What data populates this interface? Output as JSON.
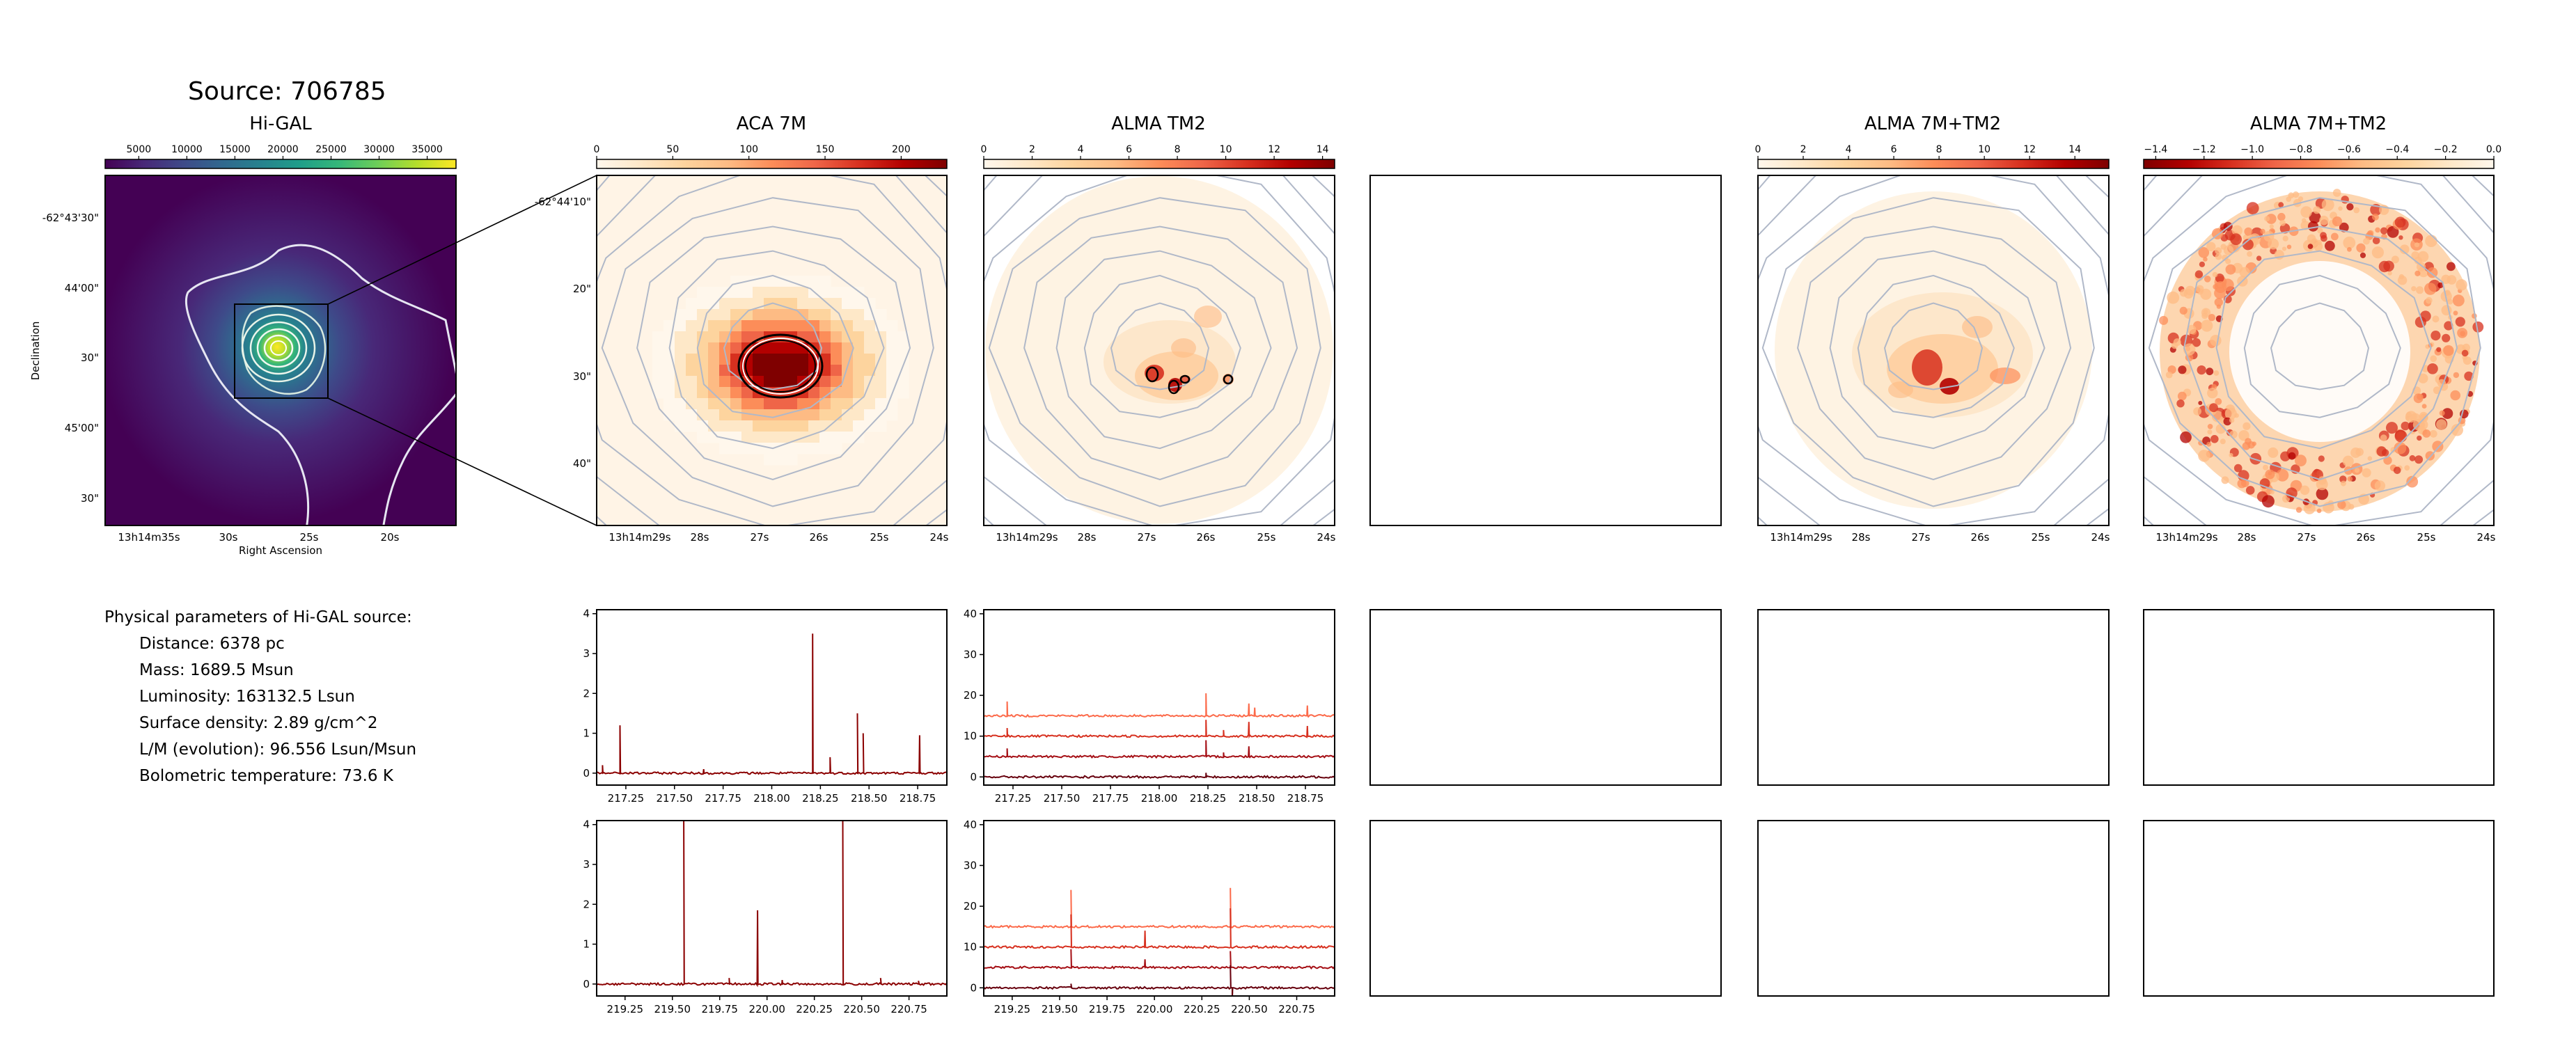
{
  "source_title": "Source: 706785",
  "panels": {
    "higal": {
      "title": "Hi-GAL"
    },
    "aca7m": {
      "title": "ACA 7M"
    },
    "tm2": {
      "title": "ALMA TM2"
    },
    "combo1": {
      "title": "ALMA 7M+TM2"
    },
    "combo2": {
      "title": "ALMA 7M+TM2"
    }
  },
  "colormaps": {
    "viridis": [
      "#440154",
      "#482878",
      "#3e4a89",
      "#31688e",
      "#26828e",
      "#1f9e89",
      "#35b779",
      "#6ece58",
      "#b5de2b",
      "#fde725"
    ],
    "orrd": [
      "#fff7ec",
      "#fee8c8",
      "#fdd49e",
      "#fdbb84",
      "#fc8d59",
      "#ef6548",
      "#d7301f",
      "#b30000",
      "#7f0000"
    ]
  },
  "colorbars": [
    {
      "panel": "higal",
      "cmap": "viridis",
      "reversed": false,
      "range": [
        1500,
        38000
      ],
      "ticks": [
        "5000",
        "10000",
        "15000",
        "20000",
        "25000",
        "30000",
        "35000"
      ],
      "tick_values": [
        5000,
        10000,
        15000,
        20000,
        25000,
        30000,
        35000
      ]
    },
    {
      "panel": "aca7m",
      "cmap": "orrd",
      "reversed": false,
      "range": [
        0,
        230
      ],
      "ticks": [
        "0",
        "50",
        "100",
        "150",
        "200"
      ],
      "tick_values": [
        0,
        50,
        100,
        150,
        200
      ]
    },
    {
      "panel": "tm2",
      "cmap": "orrd",
      "reversed": false,
      "range": [
        0,
        14.5
      ],
      "ticks": [
        "0",
        "2",
        "4",
        "6",
        "8",
        "10",
        "12",
        "14"
      ],
      "tick_values": [
        0,
        2,
        4,
        6,
        8,
        10,
        12,
        14
      ]
    },
    {
      "panel": "combo1",
      "cmap": "orrd",
      "reversed": false,
      "range": [
        0,
        15.5
      ],
      "ticks": [
        "0",
        "2",
        "4",
        "6",
        "8",
        "10",
        "12",
        "14"
      ],
      "tick_values": [
        0,
        2,
        4,
        6,
        8,
        10,
        12,
        14
      ]
    },
    {
      "panel": "combo2",
      "cmap": "orrd",
      "reversed": true,
      "range": [
        -1.45,
        0
      ],
      "ticks": [
        "−1.4",
        "−1.2",
        "−1.0",
        "−0.8",
        "−0.6",
        "−0.4",
        "−0.2",
        "0.0"
      ],
      "tick_values": [
        -1.4,
        -1.2,
        -1.0,
        -0.8,
        -0.6,
        -0.4,
        -0.2,
        0.0
      ]
    }
  ],
  "higal_axes": {
    "ylabel": "Declination",
    "xlabel": "Right Ascension",
    "yticks": [
      "-62°43'30\"",
      "44'00\"",
      "30\"",
      "45'00\"",
      "30\""
    ],
    "xticks": [
      "13h14m35s",
      "30s",
      "25s",
      "20s"
    ]
  },
  "zoom_axes": {
    "yticks": [
      "-62°44'10\"",
      "20\"",
      "30\"",
      "40\""
    ],
    "xticks": [
      "13h14m29s",
      "28s",
      "27s",
      "26s",
      "25s",
      "24s"
    ]
  },
  "physical_parameters": {
    "heading": "Physical parameters of Hi-GAL source:",
    "distance": "Distance: 6378 pc",
    "mass": "Mass: 1689.5 Msun",
    "luminosity": "Luminosity: 163132.5 Lsun",
    "surface_density": "Surface density: 2.89 g/cm^2",
    "lm": "L/M (evolution): 96.556 Lsun/Msun",
    "tbol": "Bolometric temperature: 73.6 K"
  },
  "chart_data": [
    {
      "id": "spec-aca-1",
      "type": "line",
      "xlim": [
        217.1,
        218.9
      ],
      "ylim": [
        -0.3,
        4.1
      ],
      "xticks": [
        "217.25",
        "217.50",
        "217.75",
        "218.00",
        "218.25",
        "218.50",
        "218.75"
      ],
      "xtick_values": [
        217.25,
        217.5,
        217.75,
        218.0,
        218.25,
        218.5,
        218.75
      ],
      "yticks": [
        "0",
        "1",
        "2",
        "3",
        "4"
      ],
      "ytick_values": [
        0,
        1,
        2,
        3,
        4
      ],
      "series": [
        {
          "baseline": 0,
          "color": "#8b0000",
          "lines": [
            [
              217.13,
              0.2
            ],
            [
              217.22,
              1.2
            ],
            [
              217.65,
              0.1
            ],
            [
              218.21,
              3.5
            ],
            [
              218.3,
              0.4
            ],
            [
              218.44,
              1.5
            ],
            [
              218.47,
              1.0
            ],
            [
              218.76,
              0.95
            ]
          ]
        }
      ]
    },
    {
      "id": "spec-tm2-1",
      "type": "line",
      "xlim": [
        217.1,
        218.9
      ],
      "ylim": [
        -2,
        41
      ],
      "xticks": [
        "217.25",
        "217.50",
        "217.75",
        "218.00",
        "218.25",
        "218.50",
        "218.75"
      ],
      "xtick_values": [
        217.25,
        217.5,
        217.75,
        218.0,
        218.25,
        218.5,
        218.75
      ],
      "yticks": [
        "0",
        "10",
        "20",
        "30",
        "40"
      ],
      "ytick_values": [
        0,
        10,
        20,
        30,
        40
      ],
      "series": [
        {
          "baseline": 15,
          "color": "#fc6a4a",
          "lines": [
            [
              217.22,
              18.5
            ],
            [
              218.24,
              20.5
            ],
            [
              218.46,
              18.0
            ],
            [
              218.49,
              17.0
            ],
            [
              218.76,
              17.5
            ]
          ]
        },
        {
          "baseline": 10,
          "color": "#d7301f",
          "lines": [
            [
              217.22,
              12.0
            ],
            [
              218.24,
              14.0
            ],
            [
              218.33,
              11.5
            ],
            [
              218.46,
              13.5
            ],
            [
              218.76,
              12.5
            ]
          ]
        },
        {
          "baseline": 5,
          "color": "#a50f15",
          "lines": [
            [
              217.22,
              7.0
            ],
            [
              218.24,
              9.0
            ],
            [
              218.33,
              6.0
            ],
            [
              218.46,
              7.5
            ]
          ]
        },
        {
          "baseline": 0,
          "color": "#67000d",
          "lines": [
            [
              218.24,
              1.0
            ]
          ]
        }
      ]
    },
    {
      "id": "spec-aca-2",
      "type": "line",
      "xlim": [
        219.1,
        220.95
      ],
      "ylim": [
        -0.3,
        4.1
      ],
      "xticks": [
        "219.25",
        "219.50",
        "219.75",
        "220.00",
        "220.25",
        "220.50",
        "220.75"
      ],
      "xtick_values": [
        219.25,
        219.5,
        219.75,
        220.0,
        220.25,
        220.5,
        220.75
      ],
      "yticks": [
        "0",
        "1",
        "2",
        "3",
        "4"
      ],
      "ytick_values": [
        0,
        1,
        2,
        3,
        4
      ],
      "series": [
        {
          "baseline": 0,
          "color": "#8b0000",
          "lines": [
            [
              219.56,
              4.1
            ],
            [
              219.8,
              0.15
            ],
            [
              219.95,
              1.85
            ],
            [
              220.08,
              0.1
            ],
            [
              220.4,
              4.1
            ],
            [
              220.6,
              0.15
            ],
            [
              220.8,
              0.08
            ]
          ]
        }
      ]
    },
    {
      "id": "spec-tm2-2",
      "type": "line",
      "xlim": [
        219.1,
        220.95
      ],
      "ylim": [
        -2,
        41
      ],
      "xticks": [
        "219.25",
        "219.50",
        "219.75",
        "220.00",
        "220.25",
        "220.50",
        "220.75"
      ],
      "xtick_values": [
        219.25,
        219.5,
        219.75,
        220.0,
        220.25,
        220.5,
        220.75
      ],
      "yticks": [
        "0",
        "10",
        "20",
        "30",
        "40"
      ],
      "ytick_values": [
        0,
        10,
        20,
        30,
        40
      ],
      "series": [
        {
          "baseline": 15,
          "color": "#fc6a4a",
          "lines": [
            [
              219.56,
              24.0
            ],
            [
              220.4,
              24.5
            ]
          ]
        },
        {
          "baseline": 10,
          "color": "#d7301f",
          "lines": [
            [
              219.56,
              18.0
            ],
            [
              219.95,
              14.0
            ],
            [
              220.4,
              19.5
            ]
          ]
        },
        {
          "baseline": 5,
          "color": "#a50f15",
          "lines": [
            [
              219.56,
              9.5
            ],
            [
              219.95,
              7.0
            ],
            [
              220.4,
              9.0
            ]
          ]
        },
        {
          "baseline": 0,
          "color": "#67000d",
          "lines": [
            [
              219.56,
              1.0
            ],
            [
              220.4,
              5.5
            ],
            [
              220.41,
              -3.0
            ]
          ]
        }
      ]
    }
  ]
}
